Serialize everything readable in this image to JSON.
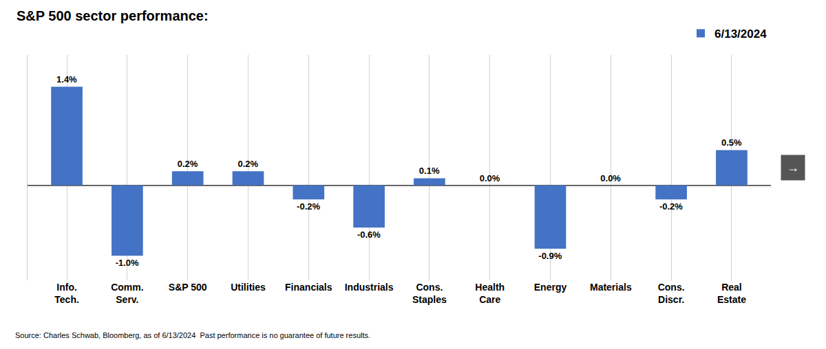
{
  "chart_data": {
    "type": "bar",
    "title": "S&P 500 sector performance:",
    "categories": [
      "Info.\nTech.",
      "Comm.\nServ.",
      "S&P 500",
      "Utilities",
      "Financials",
      "Industrials",
      "Cons.\nStaples",
      "Health\nCare",
      "Energy",
      "Materials",
      "Cons.\nDiscr.",
      "Real\nEstate"
    ],
    "series": [
      {
        "name": "6/13/2024",
        "color": "#4472C4",
        "values": [
          1.4,
          -1.0,
          0.2,
          0.2,
          -0.2,
          -0.6,
          0.1,
          0.0,
          -0.9,
          0.0,
          -0.2,
          0.5
        ],
        "value_labels": [
          "1.4%",
          "-1.0%",
          "0.2%",
          "0.2%",
          "-0.2%",
          "-0.6%",
          "0.1%",
          "0.0%",
          "-0.9%",
          "0.0%",
          "-0.2%",
          "0.5%"
        ]
      }
    ],
    "ylim": [
      -1.35,
      1.85
    ],
    "yticks": [],
    "grid": true,
    "legend": "upper right",
    "data_labels": true,
    "tick_labels": "x",
    "annotations": [
      {
        "text": "Source: Charles Schwab, Bloomberg, as of 6/13/2024  Past performance is no guarantee of future results."
      },
      {
        "text": "→"
      }
    ]
  }
}
